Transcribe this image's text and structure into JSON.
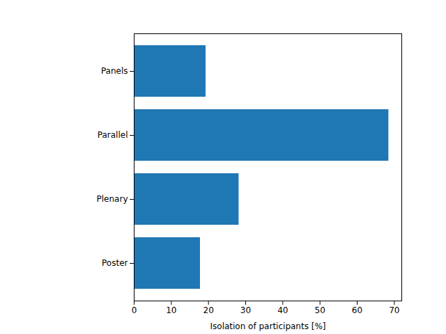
{
  "chart_data": {
    "type": "bar",
    "orientation": "horizontal",
    "xlabel": "Isolation of participants [%]",
    "categories": [
      "Panels",
      "Parallel",
      "Plenary",
      "Poster"
    ],
    "values": [
      19.3,
      68.5,
      28.2,
      17.8
    ],
    "color": "#1f77b4",
    "xlim": [
      0,
      72
    ],
    "xticks": [
      0,
      10,
      20,
      30,
      40,
      50,
      60,
      70
    ],
    "grid": false
  }
}
